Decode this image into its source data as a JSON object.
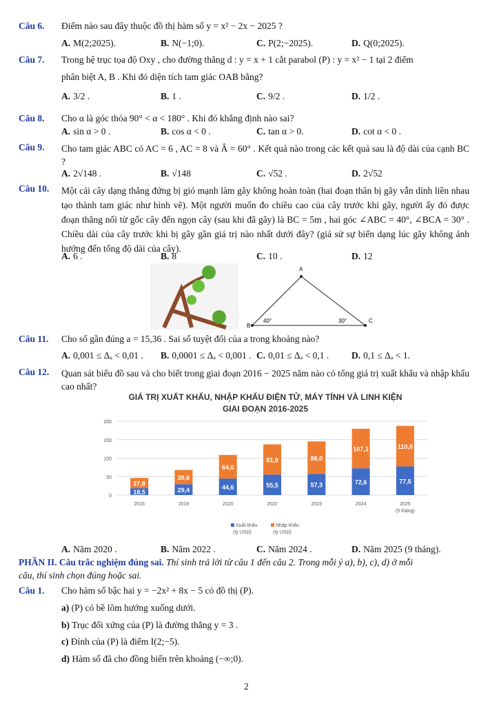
{
  "colors": {
    "label": "#1f3b9c",
    "export": "#3f6cc6",
    "import": "#ee7d31"
  },
  "q6": {
    "label": "Câu 6.",
    "text": "Điểm nào sau đây thuộc đồ thị hàm số y = x² − 2x − 2025 ?",
    "opts": [
      "M(2;2025).",
      "N(−1;0).",
      "P(2;−2025).",
      "Q(0;2025)."
    ]
  },
  "q7": {
    "label": "Câu 7.",
    "line1": "Trong hệ trục tọa độ Oxy , cho đường thẳng d : y = x + 1 cắt parabol (P) : y = x² − 1 tại 2 điểm",
    "line2": "phân biệt A, B . Khi đó diện tích tam giác OAB bằng?",
    "opts": [
      "3/2 .",
      "1 .",
      "9/2 .",
      "1/2 ."
    ]
  },
  "q8": {
    "label": "Câu 8.",
    "text": "Cho α là góc thỏa 90° < α < 180° . Khi đó khẳng định nào sai?",
    "opts": [
      "sin α > 0 .",
      "cos α < 0 .",
      "tan α > 0.",
      "cot α < 0 ."
    ]
  },
  "q9": {
    "label": "Câu 9.",
    "text": "Cho tam giác ABC có AC = 6 , AC = 8 và Â = 60° . Kết quả nào trong các kết quả sau là độ dài của cạnh BC ?",
    "opts": [
      "2√148 .",
      "√148",
      "√52 .",
      "2√52"
    ]
  },
  "q10": {
    "label": "Câu 10.",
    "text": "Một cái cây dạng thẳng đứng bị gió mạnh làm gãy không hoàn toàn (hai đoạn thân bị gãy vẫn dính liền nhau tạo thành tam giác như hình vẽ). Một người muốn đo chiều cao của cây trước khi gãy, người ấy đó được đoạn thẳng nối từ gốc cây đến ngọn cây (sau khi đã gãy) là BC = 5m , hai góc ∠ABC = 40°, ∠BCA = 30° . Chiều dài của cây trước khi bị gãy gần giá trị nào nhất dưới đây? (giả sử sự biến dạng lúc gãy không ảnh hưởng đến tổng độ dài của cây).",
    "opts": [
      "6 .",
      "8",
      "10 .",
      "12"
    ],
    "figure": {
      "A": "A",
      "B": "B",
      "C": "C",
      "angleB": "40°",
      "angleC": "30°"
    }
  },
  "q11": {
    "label": "Câu 11.",
    "text": "Cho số gần đúng a = 15,36 . Sai số tuyệt đối của a trong khoảng nào?",
    "opts": [
      "0,001 ≤ Δₐ < 0,01 .",
      "0,0001 ≤ Δₐ < 0,001 .",
      "0,01 ≤ Δₐ < 0,1 .",
      "0,1 ≤ Δₐ < 1."
    ]
  },
  "q12": {
    "label": "Câu 12.",
    "text": "Quan sát biểu đồ sau và cho biết trong giai đoạn 2016 − 2025 năm nào có tổng giá trị xuất khẩu và nhập khẩu cao nhất?",
    "opts": [
      "Năm 2020 .",
      "Năm 2022 .",
      "Năm 2024 .",
      "Năm 2025 (9 tháng)."
    ]
  },
  "letters": [
    "A.",
    "B.",
    "C.",
    "D."
  ],
  "chart_data": {
    "type": "bar",
    "stacked": true,
    "title": "GIÁ TRỊ XUẤT KHẨU, NHẬP KHẨU ĐIỆN TỬ, MÁY TÍNH VÀ LINH KIỆN",
    "subtitle": "GIAI ĐOẠN 2016-2025",
    "categories": [
      "2016",
      "2018",
      "2020",
      "2022",
      "2023",
      "2024",
      "2025"
    ],
    "category_notes": {
      "2025": "(9 tháng)"
    },
    "series": [
      {
        "name": "Xuất khẩu",
        "unit": "(tỷ USD)",
        "values": [
          18.5,
          29.4,
          44.6,
          55.5,
          57.3,
          72.6,
          77.5
        ],
        "labels": [
          "18,5",
          "29,4",
          "44,6",
          "55,5",
          "57,3",
          "72,6",
          "77,5"
        ]
      },
      {
        "name": "Nhập khẩu",
        "unit": "(tỷ USD)",
        "values": [
          27.8,
          38.6,
          64.0,
          81.9,
          88.0,
          107.1,
          110.0
        ],
        "labels": [
          "27,8",
          "38,6",
          "64,0",
          "81,9",
          "88,0",
          "107,1",
          "110,0"
        ]
      }
    ],
    "ylim": [
      0,
      200
    ],
    "yticks": [
      "0",
      "50",
      "100",
      "150",
      "200"
    ],
    "grid": true,
    "legend": "bottom"
  },
  "part2": {
    "heading": "PHẦN II. Câu trắc nghiệm đúng sai.",
    "instr1": " Thí sinh trả lời từ câu 1 đến câu 2. Trong mỗi ý a), b), c), d) ở mỗi",
    "instr2": "câu, thí sinh chọn đúng hoặc sai."
  },
  "p1": {
    "label": "Câu 1.",
    "text": "Cho hàm số bậc hai y = −2x² + 8x − 5 có đồ thị (P).",
    "items": [
      {
        "k": "a)",
        "t": "(P) có bề lõm hướng xuống dưới."
      },
      {
        "k": "b)",
        "t": "Trục đối xứng của (P) là đường thẳng y = 3 ."
      },
      {
        "k": "c)",
        "t": "Đỉnh của (P) là điểm I(2;−5)."
      },
      {
        "k": "d)",
        "t": "Hàm số đã cho đồng biến trên khoảng (−∞;0)."
      }
    ]
  },
  "page_number": "2"
}
